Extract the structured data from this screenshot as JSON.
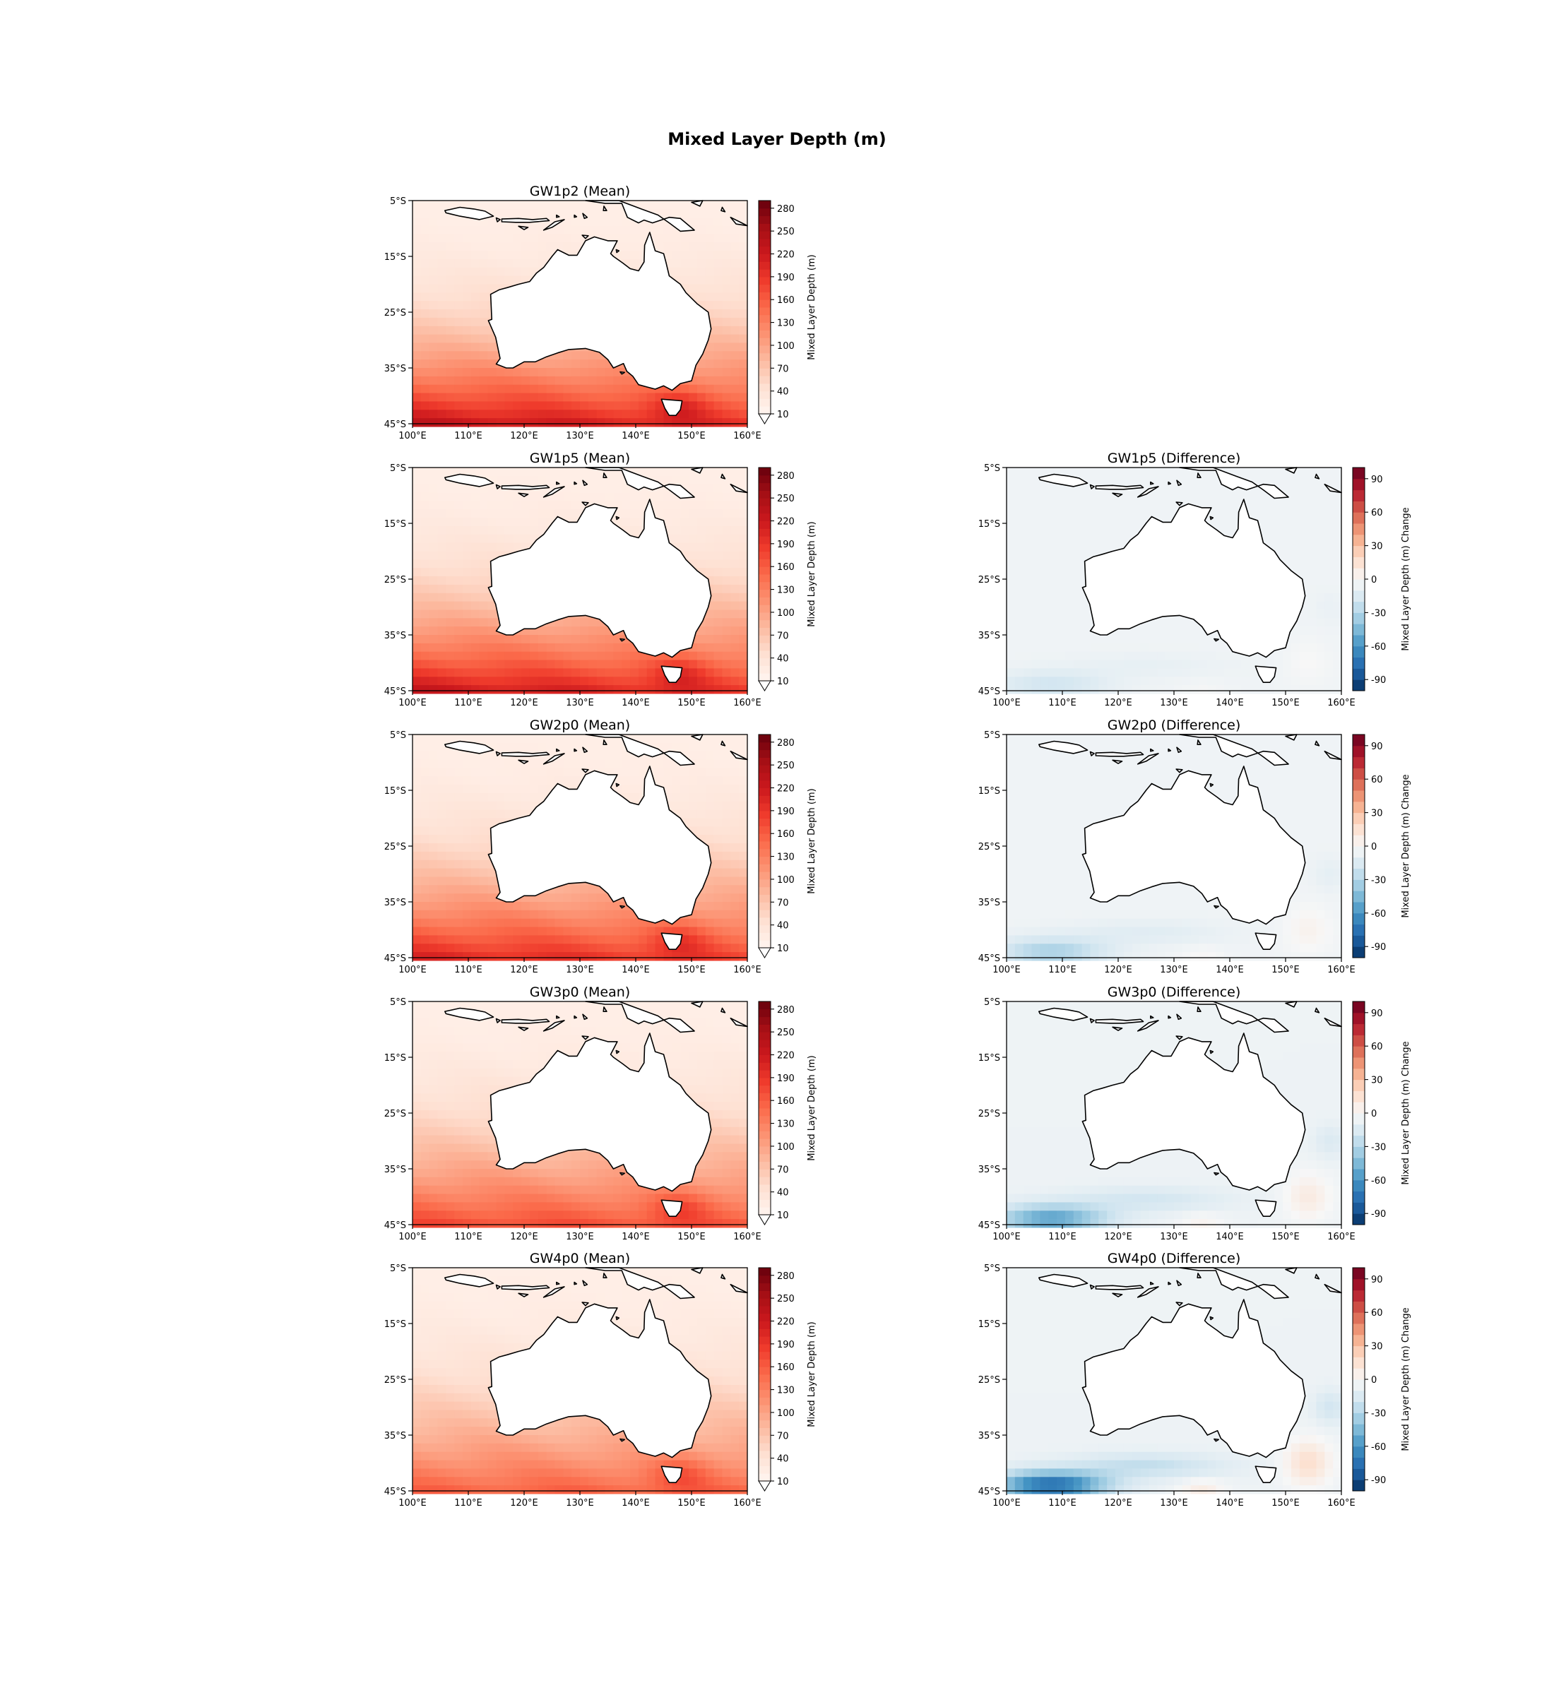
{
  "figure": {
    "title": "Mixed Layer Depth (m)"
  },
  "colors": {
    "land": "#ffffff",
    "coast": "#000000",
    "mean_palette": [
      "#fff5f0",
      "#fee0d2",
      "#fcbba1",
      "#fc9272",
      "#fb6a4a",
      "#ef3b2c",
      "#cb181d",
      "#a50f15",
      "#67000d"
    ],
    "diff_palette": [
      "#053061",
      "#2166ac",
      "#4393c3",
      "#92c5de",
      "#d1e5f0",
      "#f7f7f7",
      "#fddbc7",
      "#f4a582",
      "#d6604d",
      "#b2182b",
      "#67001f"
    ]
  },
  "chart_data": [
    {
      "type": "heatmap",
      "title": "GW1p2 (Mean)",
      "lon_range": [
        100,
        160
      ],
      "lat_range": [
        -45,
        -5
      ],
      "xticks": [
        "100°E",
        "110°E",
        "120°E",
        "130°E",
        "140°E",
        "150°E",
        "160°E"
      ],
      "yticks": [
        "5°S",
        "15°S",
        "25°S",
        "35°S",
        "45°S"
      ],
      "colorbar": {
        "label": "Mixed Layer Depth (m)",
        "ticks": [
          "280",
          "250",
          "220",
          "190",
          "160",
          "130",
          "100",
          "70",
          "40",
          "10"
        ],
        "range": [
          10,
          290
        ]
      },
      "field": {
        "kind": "mean",
        "south_max": 190,
        "south_west_boost": 40,
        "tropic_value": 22
      }
    },
    {
      "type": "heatmap",
      "title": "GW1p5 (Mean)",
      "lon_range": [
        100,
        160
      ],
      "lat_range": [
        -45,
        -5
      ],
      "xticks": [
        "100°E",
        "110°E",
        "120°E",
        "130°E",
        "140°E",
        "150°E",
        "160°E"
      ],
      "yticks": [
        "5°S",
        "15°S",
        "25°S",
        "35°S",
        "45°S"
      ],
      "colorbar": {
        "label": "Mixed Layer Depth (m)",
        "ticks": [
          "280",
          "250",
          "220",
          "190",
          "160",
          "130",
          "100",
          "70",
          "40",
          "10"
        ],
        "range": [
          10,
          290
        ]
      },
      "field": {
        "kind": "mean",
        "south_max": 185,
        "south_west_boost": 38,
        "tropic_value": 22
      }
    },
    {
      "type": "heatmap",
      "title": "GW1p5 (Difference)",
      "lon_range": [
        100,
        160
      ],
      "lat_range": [
        -45,
        -5
      ],
      "xticks": [
        "100°E",
        "110°E",
        "120°E",
        "130°E",
        "140°E",
        "150°E",
        "160°E"
      ],
      "yticks": [
        "5°S",
        "15°S",
        "25°S",
        "35°S",
        "45°S"
      ],
      "colorbar": {
        "label": "Mixed Layer Depth (m) Change",
        "ticks": [
          "90",
          "60",
          "30",
          "0",
          "-30",
          "-60",
          "-90"
        ],
        "range": [
          -100,
          100
        ]
      },
      "field": {
        "kind": "diff",
        "sw_negative": -12,
        "se_positive": 4,
        "background": -4
      }
    },
    {
      "type": "heatmap",
      "title": "GW2p0 (Mean)",
      "lon_range": [
        100,
        160
      ],
      "lat_range": [
        -45,
        -5
      ],
      "xticks": [
        "100°E",
        "110°E",
        "120°E",
        "130°E",
        "140°E",
        "150°E",
        "160°E"
      ],
      "yticks": [
        "5°S",
        "15°S",
        "25°S",
        "35°S",
        "45°S"
      ],
      "colorbar": {
        "label": "Mixed Layer Depth (m)",
        "ticks": [
          "280",
          "250",
          "220",
          "190",
          "160",
          "130",
          "100",
          "70",
          "40",
          "10"
        ],
        "range": [
          10,
          290
        ]
      },
      "field": {
        "kind": "mean",
        "south_max": 175,
        "south_west_boost": 30,
        "tropic_value": 22
      }
    },
    {
      "type": "heatmap",
      "title": "GW2p0 (Difference)",
      "lon_range": [
        100,
        160
      ],
      "lat_range": [
        -45,
        -5
      ],
      "xticks": [
        "100°E",
        "110°E",
        "120°E",
        "130°E",
        "140°E",
        "150°E",
        "160°E"
      ],
      "yticks": [
        "5°S",
        "15°S",
        "25°S",
        "35°S",
        "45°S"
      ],
      "colorbar": {
        "label": "Mixed Layer Depth (m) Change",
        "ticks": [
          "90",
          "60",
          "30",
          "0",
          "-30",
          "-60",
          "-90"
        ],
        "range": [
          -100,
          100
        ]
      },
      "field": {
        "kind": "diff",
        "sw_negative": -22,
        "se_positive": 8,
        "background": -4
      }
    },
    {
      "type": "heatmap",
      "title": "GW3p0 (Mean)",
      "lon_range": [
        100,
        160
      ],
      "lat_range": [
        -45,
        -5
      ],
      "xticks": [
        "100°E",
        "110°E",
        "120°E",
        "130°E",
        "140°E",
        "150°E",
        "160°E"
      ],
      "yticks": [
        "5°S",
        "15°S",
        "25°S",
        "35°S",
        "45°S"
      ],
      "colorbar": {
        "label": "Mixed Layer Depth (m)",
        "ticks": [
          "280",
          "250",
          "220",
          "190",
          "160",
          "130",
          "100",
          "70",
          "40",
          "10"
        ],
        "range": [
          10,
          290
        ]
      },
      "field": {
        "kind": "mean",
        "south_max": 160,
        "south_west_boost": 15,
        "tropic_value": 22
      }
    },
    {
      "type": "heatmap",
      "title": "GW3p0 (Difference)",
      "lon_range": [
        100,
        160
      ],
      "lat_range": [
        -45,
        -5
      ],
      "xticks": [
        "100°E",
        "110°E",
        "120°E",
        "130°E",
        "140°E",
        "150°E",
        "160°E"
      ],
      "yticks": [
        "5°S",
        "15°S",
        "25°S",
        "35°S",
        "45°S"
      ],
      "colorbar": {
        "label": "Mixed Layer Depth (m) Change",
        "ticks": [
          "90",
          "60",
          "30",
          "0",
          "-30",
          "-60",
          "-90"
        ],
        "range": [
          -100,
          100
        ]
      },
      "field": {
        "kind": "diff",
        "sw_negative": -38,
        "se_positive": 14,
        "background": -5
      }
    },
    {
      "type": "heatmap",
      "title": "GW4p0 (Mean)",
      "lon_range": [
        100,
        160
      ],
      "lat_range": [
        -45,
        -5
      ],
      "xticks": [
        "100°E",
        "110°E",
        "120°E",
        "130°E",
        "140°E",
        "150°E",
        "160°E"
      ],
      "yticks": [
        "5°S",
        "15°S",
        "25°S",
        "35°S",
        "45°S"
      ],
      "colorbar": {
        "label": "Mixed Layer Depth (m)",
        "ticks": [
          "280",
          "250",
          "220",
          "190",
          "160",
          "130",
          "100",
          "70",
          "40",
          "10"
        ],
        "range": [
          10,
          290
        ]
      },
      "field": {
        "kind": "mean",
        "south_max": 150,
        "south_west_boost": 5,
        "tropic_value": 22
      }
    },
    {
      "type": "heatmap",
      "title": "GW4p0 (Difference)",
      "lon_range": [
        100,
        160
      ],
      "lat_range": [
        -45,
        -5
      ],
      "xticks": [
        "100°E",
        "110°E",
        "120°E",
        "130°E",
        "140°E",
        "150°E",
        "160°E"
      ],
      "yticks": [
        "5°S",
        "15°S",
        "25°S",
        "35°S",
        "45°S"
      ],
      "colorbar": {
        "label": "Mixed Layer Depth (m) Change",
        "ticks": [
          "90",
          "60",
          "30",
          "0",
          "-30",
          "-60",
          "-90"
        ],
        "range": [
          -100,
          100
        ]
      },
      "field": {
        "kind": "diff",
        "sw_negative": -55,
        "se_positive": 22,
        "background": -5
      }
    }
  ]
}
